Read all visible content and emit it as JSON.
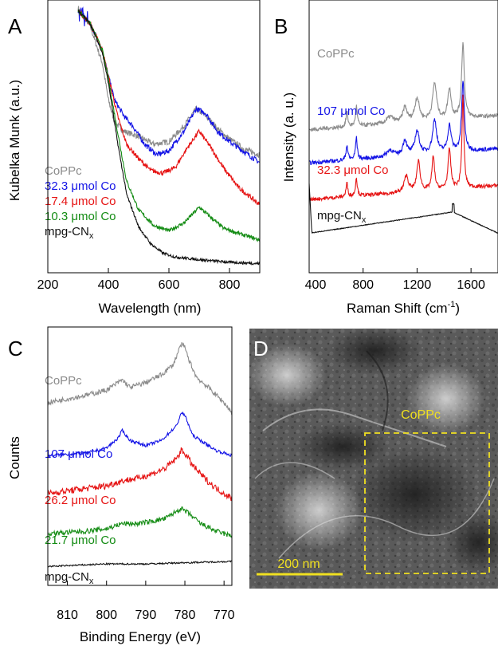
{
  "panels": {
    "A": {
      "letter": "A"
    },
    "B": {
      "letter": "B"
    },
    "C": {
      "letter": "C"
    },
    "D": {
      "letter": "D",
      "box_label": "CoPPc",
      "scale_bar": "200 nm"
    }
  },
  "colors": {
    "gray": "#8c8c8c",
    "blue": "#1414e6",
    "red": "#e61414",
    "green": "#148c14",
    "black": "#111111",
    "yellow": "#f0e020"
  },
  "chart_data": [
    {
      "id": "A",
      "type": "line",
      "ylabel": "Kubelka Munk (a.u.)",
      "xlabel": "Wavelength (nm)",
      "xlim": [
        200,
        900
      ],
      "xticks": [
        200,
        400,
        600,
        800
      ],
      "y_ticks_shown": false,
      "series": [
        {
          "name": "CoPPc",
          "color": "#8c8c8c",
          "noise": 2.2,
          "x": [
            300,
            340,
            380,
            400,
            420,
            450,
            500,
            550,
            600,
            650,
            690,
            720,
            760,
            800,
            850,
            900
          ],
          "y": [
            112,
            98,
            70,
            42,
            25,
            18,
            14,
            8,
            10,
            22,
            35,
            30,
            20,
            12,
            4,
            0
          ]
        },
        {
          "name": "32.3 μmol Co",
          "color": "#1414e6",
          "noise": 2.0,
          "x": [
            300,
            340,
            380,
            400,
            420,
            450,
            480,
            520,
            560,
            600,
            650,
            690,
            720,
            760,
            800,
            850,
            900
          ],
          "y": [
            110,
            100,
            80,
            60,
            42,
            30,
            22,
            8,
            0,
            3,
            18,
            35,
            32,
            18,
            10,
            2,
            -6
          ]
        },
        {
          "name": "17.4 μmol Co",
          "color": "#e61414",
          "noise": 1.8,
          "x": [
            300,
            340,
            380,
            400,
            430,
            460,
            500,
            540,
            580,
            620,
            660,
            700,
            740,
            780,
            830,
            900
          ],
          "y": [
            110,
            100,
            80,
            60,
            30,
            8,
            -3,
            -12,
            -14,
            -10,
            5,
            18,
            5,
            -10,
            -25,
            -38
          ]
        },
        {
          "name": "10.3 μmol Co",
          "color": "#148c14",
          "noise": 1.4,
          "x": [
            300,
            340,
            380,
            400,
            430,
            460,
            500,
            550,
            600,
            650,
            700,
            740,
            780,
            830,
            900
          ],
          "y": [
            110,
            100,
            80,
            58,
            18,
            -20,
            -42,
            -54,
            -58,
            -52,
            -40,
            -48,
            -56,
            -60,
            -65
          ]
        },
        {
          "name": "mpg-CNx",
          "color": "#111111",
          "noise": 1.0,
          "x": [
            300,
            340,
            380,
            400,
            430,
            460,
            500,
            540,
            580,
            620,
            700,
            800,
            900
          ],
          "y": [
            110,
            100,
            78,
            55,
            10,
            -30,
            -55,
            -68,
            -75,
            -78,
            -80,
            -82,
            -83
          ]
        }
      ],
      "legend": [
        "CoPPc",
        "32.3 μmol Co",
        "17.4 μmol Co",
        "10.3 μmol Co",
        "mpg-CN"
      ],
      "legend_subscript": "x"
    },
    {
      "id": "B",
      "type": "line",
      "ylabel": "Intensity (a. u.)",
      "xlabel": "Raman Shift (cm",
      "xlabel_sup": "-1",
      "xlabel_tail": ")",
      "xlim": [
        400,
        1800
      ],
      "xticks": [
        400,
        800,
        1200,
        1600
      ],
      "y_ticks_shown": false,
      "series": [
        {
          "name": "CoPPc",
          "color": "#8c8c8c",
          "baseline": 20,
          "noise": 1.2,
          "peaks": [
            [
              680,
              9,
              8
            ],
            [
              750,
              12,
              8
            ],
            [
              1000,
              4,
              30
            ],
            [
              1110,
              9,
              18
            ],
            [
              1200,
              14,
              20
            ],
            [
              1330,
              22,
              18
            ],
            [
              1440,
              18,
              15
            ],
            [
              1540,
              45,
              12
            ]
          ]
        },
        {
          "name": "107 μmol Co",
          "color": "#1414e6",
          "baseline": 0,
          "noise": 1.2,
          "peaks": [
            [
              680,
              9,
              8
            ],
            [
              750,
              13,
              8
            ],
            [
              1000,
              4,
              30
            ],
            [
              1110,
              9,
              18
            ],
            [
              1200,
              14,
              20
            ],
            [
              1330,
              20,
              18
            ],
            [
              1440,
              16,
              15
            ],
            [
              1540,
              42,
              12
            ]
          ]
        },
        {
          "name": "32.3 μmol Co",
          "color": "#e61414",
          "baseline": -22,
          "noise": 1.1,
          "peaks": [
            [
              680,
              8,
              8
            ],
            [
              750,
              11,
              8
            ],
            [
              1120,
              10,
              18
            ],
            [
              1210,
              18,
              15
            ],
            [
              1320,
              20,
              12
            ],
            [
              1440,
              24,
              12
            ],
            [
              1540,
              55,
              9
            ]
          ]
        },
        {
          "name": "mpg-CNx",
          "color": "#111111",
          "baseline": -42,
          "noise": 0.2,
          "peaks": []
        }
      ],
      "legend": [
        "CoPPc",
        "107 μmol Co",
        "32.3 μmol Co",
        "mpg-CN"
      ],
      "legend_subscript": "x"
    },
    {
      "id": "C",
      "type": "line",
      "ylabel": "Counts",
      "xlabel": "Binding Energy (eV)",
      "xlim": [
        815,
        768
      ],
      "x_reversed": true,
      "xticks": [
        810,
        800,
        790,
        780,
        770
      ],
      "y_ticks_shown": false,
      "series": [
        {
          "name": "CoPPc",
          "color": "#8c8c8c",
          "noise": 2.0,
          "x": [
            815,
            805,
            800,
            796,
            794,
            790,
            786,
            783,
            781,
            780,
            779,
            777,
            774,
            770,
            768
          ],
          "y": [
            0,
            6,
            10,
            18,
            12,
            16,
            22,
            30,
            46,
            44,
            34,
            20,
            12,
            0,
            -8
          ]
        },
        {
          "name": "107 μmol Co",
          "color": "#1414e6",
          "noise": 1.2,
          "x": [
            815,
            805,
            800,
            797,
            796,
            794,
            790,
            786,
            782,
            781,
            780,
            778,
            775,
            772,
            768
          ],
          "y": [
            -42,
            -40,
            -36,
            -28,
            -22,
            -30,
            -34,
            -30,
            -18,
            -8,
            -10,
            -26,
            -32,
            -38,
            -42
          ]
        },
        {
          "name": "26.2 μmol Co",
          "color": "#e61414",
          "noise": 2.6,
          "x": [
            815,
            805,
            800,
            796,
            792,
            788,
            785,
            782,
            781,
            780,
            778,
            775,
            772,
            768
          ],
          "y": [
            -72,
            -68,
            -66,
            -62,
            -60,
            -56,
            -52,
            -44,
            -38,
            -40,
            -50,
            -60,
            -68,
            -76
          ]
        },
        {
          "name": "21.7 μmol Co",
          "color": "#148c14",
          "noise": 2.0,
          "x": [
            815,
            805,
            800,
            796,
            792,
            788,
            785,
            782,
            781,
            779,
            776,
            772,
            768
          ],
          "y": [
            -104,
            -102,
            -100,
            -96,
            -96,
            -94,
            -92,
            -86,
            -84,
            -88,
            -96,
            -102,
            -106
          ]
        },
        {
          "name": "mpg-CNx",
          "color": "#111111",
          "noise": 0.6,
          "x": [
            815,
            800,
            790,
            780,
            768
          ],
          "y": [
            -130,
            -128,
            -128,
            -127,
            -126
          ]
        }
      ],
      "legend": [
        "CoPPc",
        "107 μmol Co",
        "26.2 μmol Co",
        "21.7 μmol Co",
        "mpg-CN"
      ],
      "legend_subscript": "x"
    }
  ]
}
